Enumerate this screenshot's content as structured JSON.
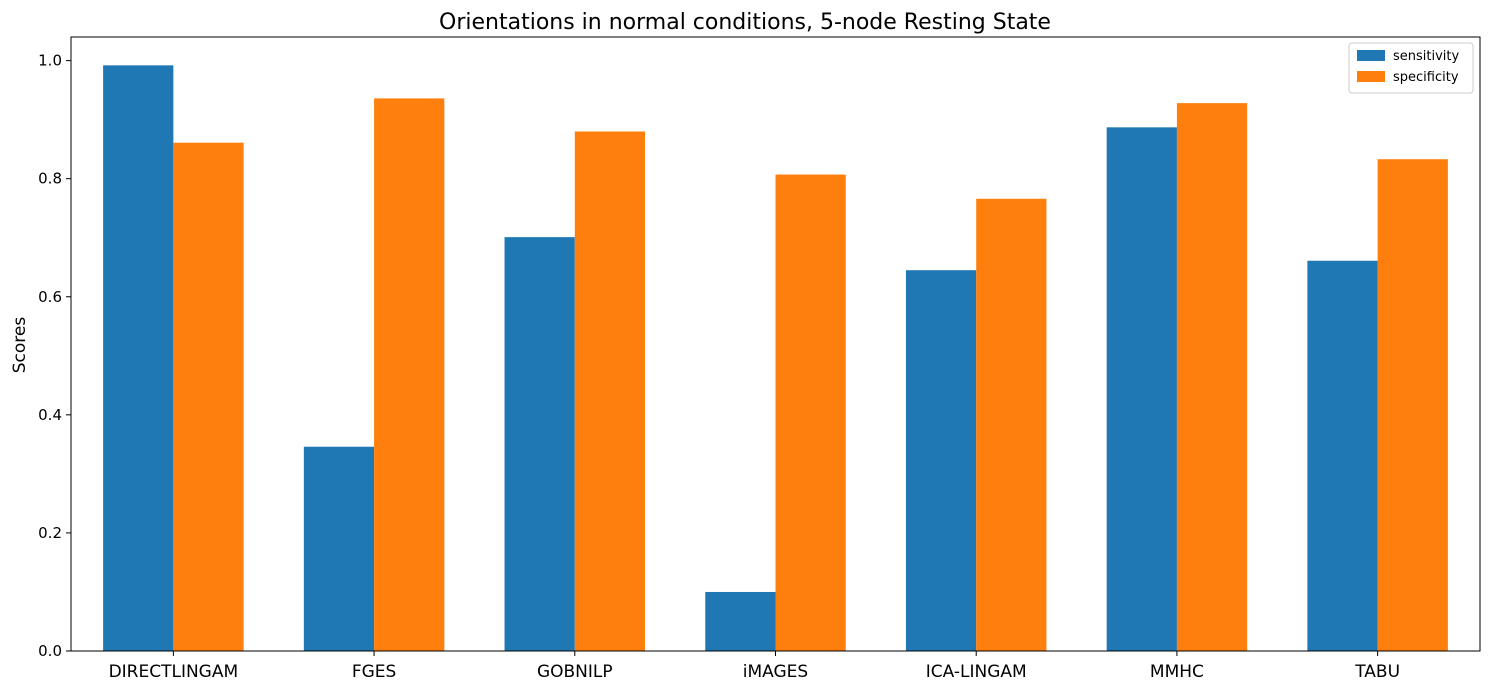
{
  "chart_data": {
    "type": "bar",
    "title": "Orientations in normal conditions, 5-node Resting State",
    "xlabel": "",
    "ylabel": "Scores",
    "categories": [
      "DIRECTLINGAM",
      "FGES",
      "GOBNILP",
      "iMAGES",
      "ICA-LINGAM",
      "MMHC",
      "TABU"
    ],
    "series": [
      {
        "name": "sensitivity",
        "color": "#1f77b4",
        "values": [
          0.992,
          0.346,
          0.701,
          0.1,
          0.645,
          0.887,
          0.661
        ]
      },
      {
        "name": "specificity",
        "color": "#ff7f0e",
        "values": [
          0.861,
          0.936,
          0.88,
          0.807,
          0.766,
          0.928,
          0.833
        ]
      }
    ],
    "ylim": [
      0,
      1.04
    ],
    "yticks": [
      "0.0",
      "0.2",
      "0.4",
      "0.6",
      "0.8",
      "1.0"
    ],
    "legend_position": "top-right",
    "grid": false
  }
}
